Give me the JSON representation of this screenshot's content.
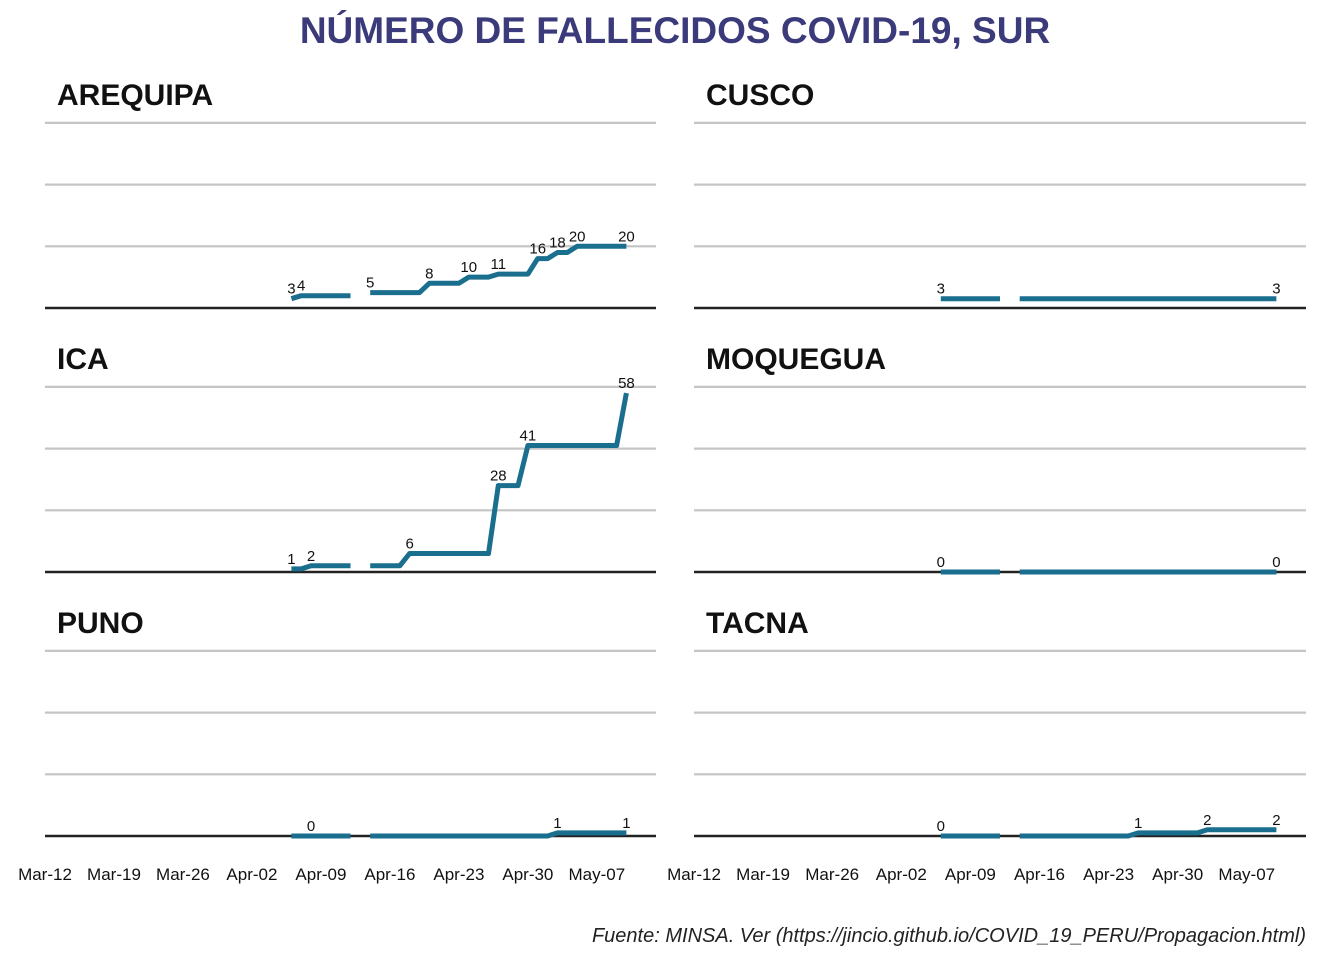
{
  "title": "NÚMERO DE FALLECIDOS COVID-19, SUR",
  "caption": "Fuente: MINSA. Ver (https://jincio.github.io/COVID_19_PERU/Propagacion.html)",
  "colors": {
    "title": "#3b3a7a",
    "series": "#1a6e8e",
    "grid": "#c4c4c4",
    "baseline": "#222222"
  },
  "chart_data": {
    "type": "line",
    "x_axis": {
      "type": "date",
      "range": [
        "2020-03-12",
        "2020-05-13"
      ],
      "ticks": [
        "Mar-12",
        "Mar-19",
        "Mar-26",
        "Apr-02",
        "Apr-09",
        "Apr-16",
        "Apr-23",
        "Apr-30",
        "May-07"
      ]
    },
    "y_axis": {
      "range": [
        0,
        60
      ],
      "shared": true,
      "grid": true
    },
    "panels": [
      {
        "name": "AREQUIPA",
        "segments": [
          [
            [
              "2020-04-06",
              3
            ],
            [
              "2020-04-07",
              4
            ],
            [
              "2020-04-12",
              4
            ]
          ],
          [
            [
              "2020-04-14",
              5
            ],
            [
              "2020-04-19",
              5
            ],
            [
              "2020-04-20",
              8
            ],
            [
              "2020-04-23",
              8
            ],
            [
              "2020-04-24",
              10
            ],
            [
              "2020-04-26",
              10
            ],
            [
              "2020-04-27",
              11
            ],
            [
              "2020-04-30",
              11
            ],
            [
              "2020-05-01",
              16
            ],
            [
              "2020-05-02",
              16
            ],
            [
              "2020-05-03",
              18
            ],
            [
              "2020-05-04",
              18
            ],
            [
              "2020-05-05",
              20
            ],
            [
              "2020-05-10",
              20
            ]
          ]
        ],
        "labels": [
          [
            "2020-04-06",
            3
          ],
          [
            "2020-04-07",
            4
          ],
          [
            "2020-04-14",
            5
          ],
          [
            "2020-04-20",
            8
          ],
          [
            "2020-04-24",
            10
          ],
          [
            "2020-04-27",
            11
          ],
          [
            "2020-05-01",
            16
          ],
          [
            "2020-05-03",
            18
          ],
          [
            "2020-05-05",
            20
          ],
          [
            "2020-05-10",
            20
          ]
        ]
      },
      {
        "name": "CUSCO",
        "segments": [
          [
            [
              "2020-04-06",
              3
            ],
            [
              "2020-04-12",
              3
            ]
          ],
          [
            [
              "2020-04-14",
              3
            ],
            [
              "2020-05-10",
              3
            ]
          ]
        ],
        "labels": [
          [
            "2020-04-06",
            3
          ],
          [
            "2020-05-10",
            3
          ]
        ]
      },
      {
        "name": "ICA",
        "segments": [
          [
            [
              "2020-04-06",
              1
            ],
            [
              "2020-04-07",
              1
            ],
            [
              "2020-04-08",
              2
            ],
            [
              "2020-04-12",
              2
            ]
          ],
          [
            [
              "2020-04-14",
              2
            ],
            [
              "2020-04-17",
              2
            ],
            [
              "2020-04-18",
              6
            ],
            [
              "2020-04-26",
              6
            ],
            [
              "2020-04-27",
              28
            ],
            [
              "2020-04-29",
              28
            ],
            [
              "2020-04-30",
              41
            ],
            [
              "2020-05-09",
              41
            ],
            [
              "2020-05-10",
              58
            ]
          ]
        ],
        "labels": [
          [
            "2020-04-06",
            1
          ],
          [
            "2020-04-08",
            2
          ],
          [
            "2020-04-18",
            6
          ],
          [
            "2020-04-27",
            28
          ],
          [
            "2020-04-30",
            41
          ],
          [
            "2020-05-10",
            58
          ]
        ]
      },
      {
        "name": "MOQUEGUA",
        "segments": [
          [
            [
              "2020-04-06",
              0
            ],
            [
              "2020-04-12",
              0
            ]
          ],
          [
            [
              "2020-04-14",
              0
            ],
            [
              "2020-05-10",
              0
            ]
          ]
        ],
        "labels": [
          [
            "2020-04-06",
            0
          ],
          [
            "2020-05-10",
            0
          ]
        ]
      },
      {
        "name": "PUNO",
        "segments": [
          [
            [
              "2020-04-06",
              0
            ],
            [
              "2020-04-12",
              0
            ]
          ],
          [
            [
              "2020-04-14",
              0
            ],
            [
              "2020-05-02",
              0
            ],
            [
              "2020-05-03",
              1
            ],
            [
              "2020-05-10",
              1
            ]
          ]
        ],
        "labels": [
          [
            "2020-04-08",
            0
          ],
          [
            "2020-05-03",
            1
          ],
          [
            "2020-05-10",
            1
          ]
        ]
      },
      {
        "name": "TACNA",
        "segments": [
          [
            [
              "2020-04-06",
              0
            ],
            [
              "2020-04-12",
              0
            ]
          ],
          [
            [
              "2020-04-14",
              0
            ],
            [
              "2020-04-25",
              0
            ],
            [
              "2020-04-26",
              1
            ],
            [
              "2020-05-02",
              1
            ],
            [
              "2020-05-03",
              2
            ],
            [
              "2020-05-10",
              2
            ]
          ]
        ],
        "labels": [
          [
            "2020-04-06",
            0
          ],
          [
            "2020-04-26",
            1
          ],
          [
            "2020-05-03",
            2
          ],
          [
            "2020-05-10",
            2
          ]
        ]
      }
    ]
  }
}
